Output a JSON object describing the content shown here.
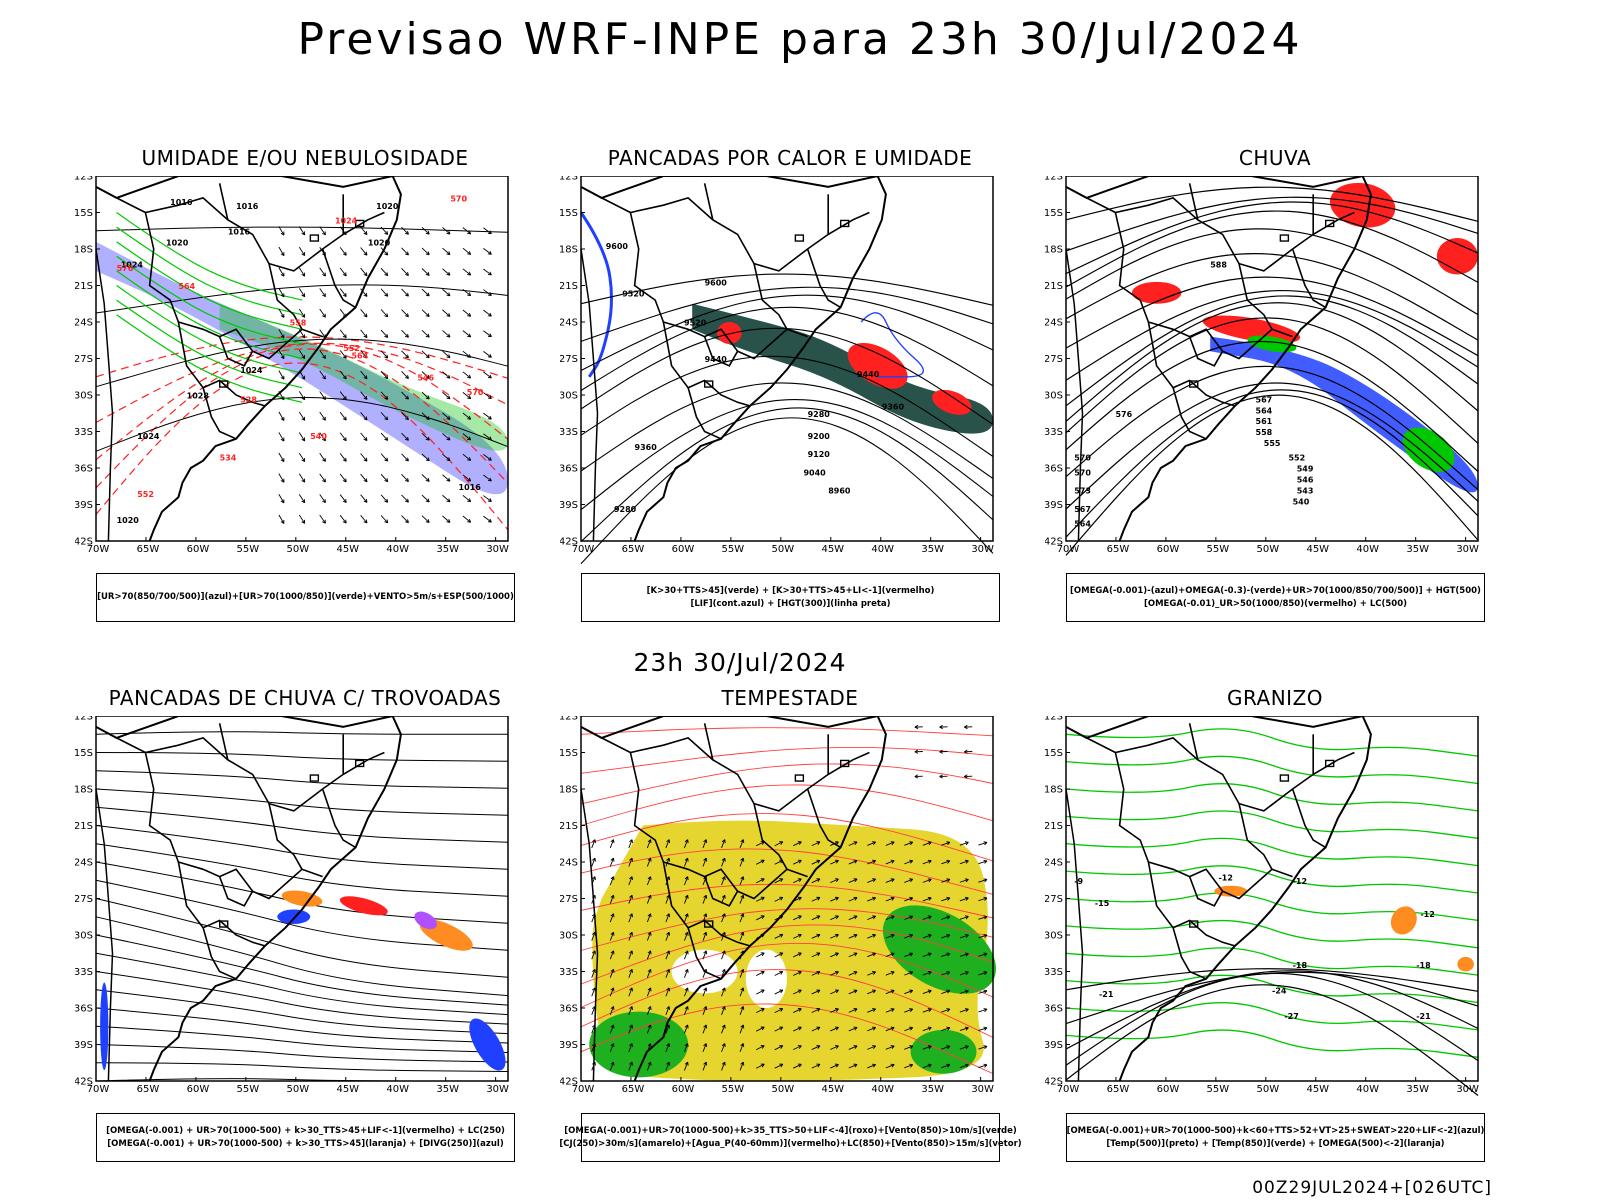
{
  "header": {
    "title": "Previsao WRF-INPE  para 23h 30/Jul/2024"
  },
  "mid_title": "23h 30/Jul/2024",
  "footer": "00Z29JUL2024+[026UTC]",
  "axes": {
    "lat_labels": [
      "12S",
      "15S",
      "18S",
      "21S",
      "24S",
      "27S",
      "30S",
      "33S",
      "36S",
      "39S",
      "42S"
    ],
    "lon_labels": [
      "70W",
      "65W",
      "60W",
      "55W",
      "50W",
      "45W",
      "40W",
      "35W",
      "30W"
    ]
  },
  "panels": [
    {
      "id": "umidade",
      "title": "UMIDADE E/OU NEBULOSIDADE",
      "legend": [
        "[UR>70(850/700/500)](azul)+[UR>70(1000/850)](verde)+VENTO>5m/s+ESP(500/1000)"
      ],
      "labels": [
        "1016",
        "1016",
        "1016",
        "1020",
        "1024",
        "1020",
        "1024",
        "1028",
        "1024",
        "1020",
        "1016",
        "1020",
        "1024",
        "570",
        "576",
        "564",
        "558",
        "552",
        "546",
        "540",
        "534",
        "528",
        "570",
        "564",
        "552"
      ]
    },
    {
      "id": "pancadas-calor",
      "title": "PANCADAS POR CALOR E UMIDADE",
      "legend": [
        "[K>30+TTS>45](verde) + [K>30+TTS>45+LI<-1](vermelho)",
        "[LIF](cont.azul) + [HGT(300)](linha preta)"
      ],
      "labels": [
        "9600",
        "9520",
        "9600",
        "9520",
        "9440",
        "9440",
        "9360",
        "9280",
        "9200",
        "9120",
        "9040",
        "8960",
        "9360",
        "9280"
      ]
    },
    {
      "id": "chuva",
      "title": "CHUVA",
      "legend": [
        "[OMEGA(-0.001)-(azul)+OMEGA(-0.3)-(verde)+UR>70(1000/850/700/500)] + HGT(500)",
        "[OMEGA(-0.01)_UR>50(1000/850)(vermelho) + LC(500)"
      ],
      "labels": [
        "588",
        "576",
        "570",
        "573",
        "567",
        "564",
        "561",
        "558",
        "555",
        "552",
        "549",
        "546",
        "543",
        "540",
        "570",
        "567",
        "564"
      ]
    },
    {
      "id": "trovoadas",
      "title": "PANCADAS DE CHUVA C/ TROVOADAS",
      "legend": [
        "[OMEGA(-0.001) + UR>70(1000-500) + k>30_TTS>45+LIF<-1](vermelho) + LC(250)",
        "[OMEGA(-0.001) + UR>70(1000-500) + k>30_TTS>45](laranja) + [DIVG(250)](azul)"
      ],
      "labels": []
    },
    {
      "id": "tempestade",
      "title": "TEMPESTADE",
      "legend": [
        "[OMEGA(-0.001)+UR>70(1000-500)+k>35_TTS>50+LIF<-4](roxo)+[Vento(850)>10m/s](verde)",
        "[CJ(250)>30m/s](amarelo)+[Agua_P(40-60mm)](vermelho)+LC(850)+[Vento(850)>15m/s](vetor)"
      ],
      "labels": []
    },
    {
      "id": "granizo",
      "title": "GRANIZO",
      "legend": [
        "[OMEGA(-0.001)+UR>70(1000-500)+k<60+TTS>52+VT>25+SWEAT>220+LIF<-2](azul)",
        "[Temp(500)](preto) + [Temp(850)](verde) + [OMEGA(500)<-2](laranja)"
      ],
      "labels": [
        "-12",
        "-12",
        "-12",
        "-15",
        "-18",
        "-18",
        "-21",
        "-24",
        "-27",
        "-21",
        "-9"
      ]
    }
  ],
  "colors": {
    "rh_mid": "#7070ff",
    "rh_low": "#00c000",
    "red": "#ff2020",
    "blue": "#2040ff",
    "green": "#00c800",
    "dkgreen": "#1d4a40",
    "orange": "#ff8c20",
    "yellow": "#e6d52e",
    "purple": "#b050ff",
    "wind_green": "#1fb01f",
    "stream": "#ff4040"
  }
}
